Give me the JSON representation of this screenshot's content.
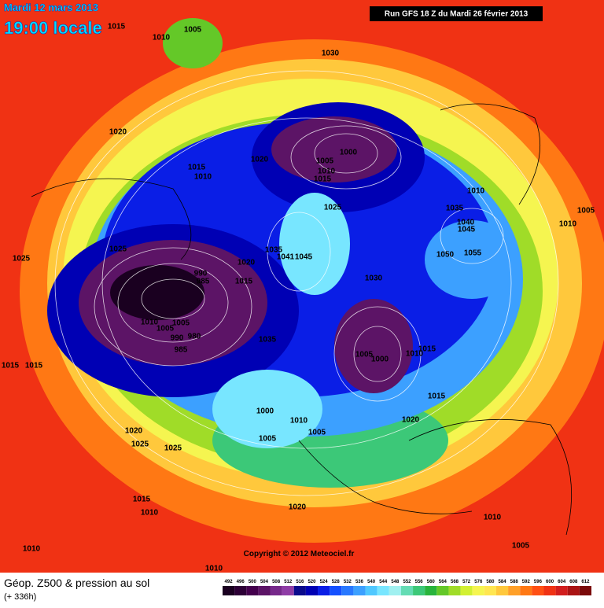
{
  "header": {
    "date": "Mardi 12 mars 2013",
    "time": "19:00 locale",
    "run": "Run GFS 18 Z du Mardi 26 février 2013"
  },
  "map": {
    "isobar_labels": [
      "1015",
      "1010",
      "1005",
      "1030",
      "1020",
      "1000",
      "1005",
      "1010",
      "1015",
      "1020",
      "1015",
      "1010",
      "1010",
      "1005",
      "1035",
      "1040",
      "1045",
      "1010",
      "1025",
      "1025",
      "1025",
      "1050",
      "1055",
      "1035",
      "1041",
      "1045",
      "1020",
      "990",
      "985",
      "1015",
      "1030",
      "1010",
      "1005",
      "1005",
      "980",
      "990",
      "985",
      "1035",
      "1005",
      "1000",
      "1010",
      "1015",
      "1015",
      "1015",
      "1015",
      "1000",
      "1010",
      "1020",
      "1020",
      "1005",
      "1005",
      "1025",
      "1025",
      "1015",
      "1010",
      "1020",
      "1010",
      "1005",
      "1010",
      "1010"
    ],
    "copyright": "Copyright © 2012 Meteociel.fr"
  },
  "footer": {
    "title": "Géop. Z500 & pression au sol",
    "lead": "(+ 336h)",
    "scale": {
      "labels": [
        492,
        496,
        500,
        504,
        508,
        512,
        516,
        520,
        524,
        528,
        532,
        536,
        540,
        544,
        548,
        552,
        556,
        560,
        564,
        568,
        572,
        576,
        580,
        584,
        588,
        592,
        596,
        600,
        604,
        608,
        612
      ],
      "colors": [
        "#1a0020",
        "#2d0036",
        "#44004d",
        "#5c1466",
        "#76288a",
        "#8f3ca6",
        "#0a0a8c",
        "#0000b4",
        "#0a1ee6",
        "#1450ff",
        "#2878ff",
        "#3ca0ff",
        "#50c8ff",
        "#78e6ff",
        "#a0f0f0",
        "#64dcb4",
        "#3cc878",
        "#28b43c",
        "#64c828",
        "#a0dc28",
        "#d2f032",
        "#f5f550",
        "#ffe650",
        "#ffc83c",
        "#ffa028",
        "#ff7814",
        "#ff5014",
        "#f03214",
        "#d21e1e",
        "#aa1414",
        "#7a0a0a"
      ]
    }
  }
}
